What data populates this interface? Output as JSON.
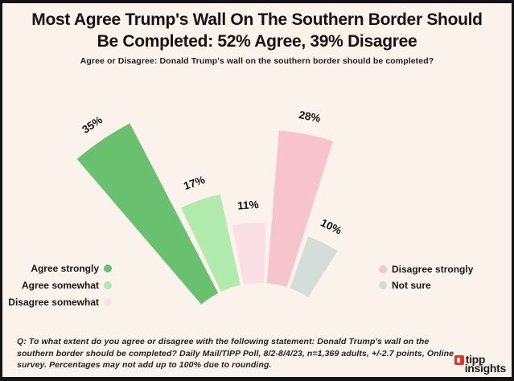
{
  "header": {
    "title_line1": "Most Agree Trump's Wall On The Southern Border Should",
    "title_line2": "Be Completed: 52% Agree, 39% Disagree",
    "subtitle": "Agree or Disagree: Donald Trump's wall on the southern border should be completed?"
  },
  "chart_data": {
    "type": "bar",
    "variant": "polar-fan",
    "title": "Most Agree Trump's Wall On The Southern Border Should Be Completed: 52% Agree, 39% Disagree",
    "question": "Agree or Disagree: Donald Trump's wall on the southern border should be completed?",
    "categories": [
      "Agree strongly",
      "Agree somewhat",
      "Disagree somewhat",
      "Disagree strongly",
      "Not sure"
    ],
    "values": [
      35,
      17,
      11,
      28,
      10
    ],
    "labels": [
      "35%",
      "17%",
      "11%",
      "28%",
      "10%"
    ],
    "colors": [
      "#69c06e",
      "#b0eaac",
      "#fadfe5",
      "#f7c3cd",
      "#d4ddd7"
    ],
    "unit": "%",
    "grid": false,
    "legend_position": "bottom-sides",
    "summary": {
      "agree_total": 52,
      "disagree_total": 39
    }
  },
  "legend": {
    "left": [
      {
        "label": "Agree strongly",
        "color": "#69c06e"
      },
      {
        "label": "Agree somewhat",
        "color": "#b0eaac"
      },
      {
        "label": "Disagree somewhat",
        "color": "#fadfe5"
      }
    ],
    "right": [
      {
        "label": "Disagree strongly",
        "color": "#f7c3cd"
      },
      {
        "label": "Not sure",
        "color": "#d4ddd7"
      }
    ]
  },
  "footer": {
    "note": "Q: To what extent do you agree or disagree with the following statement: Donald Trump's wall on the southern border should be completed? Daily Mail/TIPP Poll, 8/2-8/4/23, n=1,369 adults, +/-2.7 points, Online survey.  Percentages may not add up to 100% due to rounding."
  },
  "logo": {
    "line1": "tipp",
    "line2": "insights"
  },
  "theme": {
    "background": "#fbf2ec",
    "frame": "#141414",
    "text": "#17110f",
    "logo_red": "#d7392e"
  }
}
